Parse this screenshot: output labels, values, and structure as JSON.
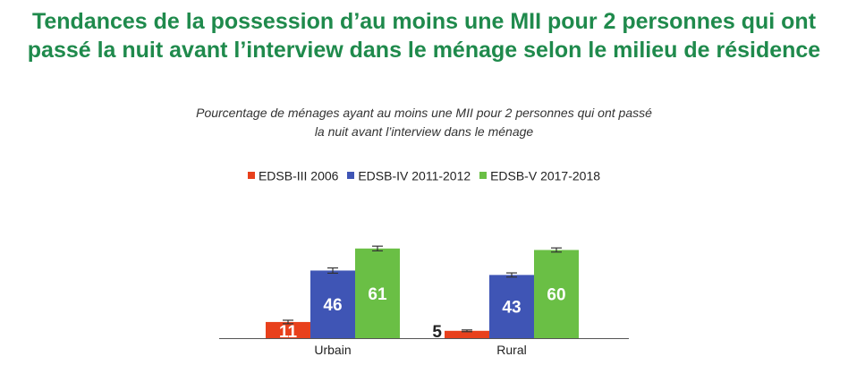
{
  "chart_data": {
    "type": "bar",
    "title": "Tendances de la possession d’au moins une MII pour 2 personnes qui ont passé la nuit avant l’interview dans le ménage selon le milieu de résidence",
    "subtitle_lines": [
      "Pourcentage de ménages ayant au moins une MII pour 2 personnes qui ont passé",
      "la nuit avant l’interview dans le ménage"
    ],
    "categories": [
      "Urbain",
      "Rural"
    ],
    "series": [
      {
        "name": "EDSB-III 2006",
        "color": "#e8401c",
        "values": [
          11,
          5
        ],
        "error": [
          1.2,
          0.6
        ]
      },
      {
        "name": "EDSB-IV 2011-2012",
        "color": "#3f55b5",
        "values": [
          46,
          43
        ],
        "error": [
          1.8,
          1.4
        ]
      },
      {
        "name": "EDSB-V 2017-2018",
        "color": "#6abf45",
        "values": [
          61,
          60
        ],
        "error": [
          1.6,
          1.4
        ]
      }
    ],
    "ylim": [
      0,
      70
    ],
    "legend_position": "top",
    "grid": false,
    "data_labels": true
  }
}
